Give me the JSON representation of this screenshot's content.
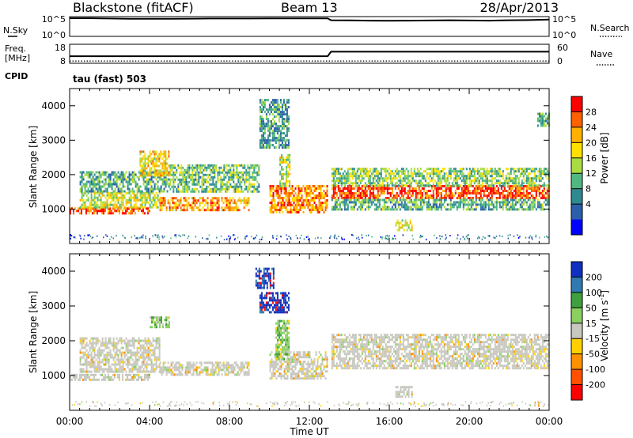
{
  "header": {
    "station": "Blackstone (fitACF)",
    "beam": "Beam 13",
    "date": "28/Apr/2013",
    "cpid_label": "CPID",
    "cpid_value": "tau (fast) 503"
  },
  "chart_data": [
    {
      "type": "line",
      "title": "",
      "xlabel": "",
      "series": [
        {
          "name": "N.Sky",
          "axis": "left",
          "style": "solid",
          "color": "#000000",
          "x": [
            "00:00",
            "01:00",
            "02:00",
            "03:00",
            "04:00",
            "05:00",
            "06:00",
            "07:00",
            "08:00",
            "09:00",
            "10:00",
            "11:00",
            "12:00",
            "12:55",
            "13:05",
            "14:00",
            "15:00",
            "16:00",
            "17:00",
            "18:00",
            "19:00",
            "20:00",
            "21:00",
            "22:00",
            "23:00",
            "24:00"
          ],
          "values": [
            5.0,
            5.0,
            4.92,
            4.85,
            4.82,
            4.85,
            4.87,
            4.9,
            4.9,
            4.92,
            4.95,
            4.95,
            4.95,
            4.95,
            4.4,
            4.38,
            4.3,
            4.25,
            4.3,
            4.35,
            4.4,
            4.35,
            4.3,
            4.4,
            4.45,
            4.6
          ]
        },
        {
          "name": "N.Search",
          "axis": "right",
          "style": "dotted",
          "color": "#000000"
        }
      ],
      "left_axis": {
        "labels": [
          "10^5",
          "10^0"
        ],
        "label": "N.Sky"
      },
      "right_axis": {
        "labels": [
          "10^5",
          "10^0"
        ],
        "label": "N.Search"
      }
    },
    {
      "type": "line",
      "title": "",
      "series": [
        {
          "name": "Freq. [MHz]",
          "axis": "left",
          "style": "solid",
          "color": "#000000",
          "x": [
            "00:00",
            "12:55",
            "13:05",
            "24:00"
          ],
          "values": [
            11.6,
            11.6,
            14.2,
            14.2
          ]
        },
        {
          "name": "Nave",
          "axis": "right",
          "style": "dotted",
          "color": "#000000",
          "x": [
            "00:00",
            "24:00"
          ],
          "values": [
            5,
            5
          ]
        }
      ],
      "left_axis": {
        "labels": [
          "18",
          "8"
        ],
        "label_top": "Freq.",
        "label_bottom": "[MHz]"
      },
      "right_axis": {
        "labels": [
          "60",
          "0"
        ],
        "label": "Nave"
      }
    },
    {
      "type": "heatmap",
      "title": "",
      "ylabel": "Slant Range [km]",
      "ylim": [
        0,
        4500
      ],
      "yticks": [
        "1000",
        "2000",
        "3000",
        "4000"
      ],
      "colorbar": {
        "label": "Power [dB]",
        "ticks": [
          "28",
          "24",
          "20",
          "16",
          "12",
          "8",
          "4"
        ],
        "colors": [
          "#ff0000",
          "#ff6000",
          "#ffb000",
          "#ffe000",
          "#a8dc40",
          "#4fb880",
          "#2f8a90",
          "#2c5faa",
          "#0000ff"
        ]
      },
      "scatter_bands": [
        {
          "t_start": 0.0,
          "t_end": 4.0,
          "r_start": 850,
          "r_end": 1050,
          "level": 0.9
        },
        {
          "t_start": 0.5,
          "t_end": 4.5,
          "r_start": 1050,
          "r_end": 1500,
          "level": 0.55
        },
        {
          "t_start": 0.5,
          "t_end": 5.0,
          "r_start": 1500,
          "r_end": 2100,
          "level": 0.35
        },
        {
          "t_start": 3.5,
          "t_end": 5.0,
          "r_start": 2000,
          "r_end": 2700,
          "level": 0.65
        },
        {
          "t_start": 4.5,
          "t_end": 9.0,
          "r_start": 1000,
          "r_end": 1350,
          "level": 0.75
        },
        {
          "t_start": 5.0,
          "t_end": 9.5,
          "r_start": 1500,
          "r_end": 2300,
          "level": 0.4
        },
        {
          "t_start": 9.5,
          "t_end": 11.0,
          "r_start": 2800,
          "r_end": 4200,
          "level": 0.3
        },
        {
          "t_start": 10.0,
          "t_end": 12.9,
          "r_start": 900,
          "r_end": 1700,
          "level": 0.8
        },
        {
          "t_start": 10.5,
          "t_end": 11.0,
          "r_start": 1700,
          "r_end": 2600,
          "level": 0.55
        },
        {
          "t_start": 13.1,
          "t_end": 24.0,
          "r_start": 1300,
          "r_end": 1700,
          "level": 0.95
        },
        {
          "t_start": 13.1,
          "t_end": 24.0,
          "r_start": 1700,
          "r_end": 2200,
          "level": 0.45
        },
        {
          "t_start": 13.1,
          "t_end": 24.0,
          "r_start": 1000,
          "r_end": 1300,
          "level": 0.35
        },
        {
          "t_start": 16.3,
          "t_end": 17.1,
          "r_start": 400,
          "r_end": 700,
          "level": 0.6
        },
        {
          "t_start": 23.4,
          "t_end": 24.0,
          "r_start": 3400,
          "r_end": 3800,
          "level": 0.35
        }
      ]
    },
    {
      "type": "heatmap",
      "title": "",
      "ylabel": "Slant Range [km]",
      "xlabel": "Time UT",
      "xticks": [
        "00:00",
        "04:00",
        "08:00",
        "12:00",
        "16:00",
        "20:00",
        "00:00"
      ],
      "ylim": [
        0,
        4500
      ],
      "yticks": [
        "1000",
        "2000",
        "3000",
        "4000"
      ],
      "colorbar": {
        "label": "Velocity [m s^-1]",
        "label_main": "Velocity [m s",
        "label_exp": "-1",
        "label_close": "]",
        "ticks": [
          "200",
          "100",
          "50",
          "15",
          "-15",
          "-50",
          "-100",
          "-200"
        ],
        "colors": [
          "#1030c0",
          "#2f7ab0",
          "#3fa040",
          "#8ad060",
          "#c8c8c0",
          "#ffd000",
          "#ff9000",
          "#ff5000",
          "#ff0000"
        ]
      },
      "scatter_bands": [
        {
          "t_start": 0.0,
          "t_end": 4.0,
          "r_start": 850,
          "r_end": 1050,
          "kind": "ground"
        },
        {
          "t_start": 0.5,
          "t_end": 4.5,
          "r_start": 1100,
          "r_end": 2100,
          "kind": "ground"
        },
        {
          "t_start": 4.0,
          "t_end": 5.0,
          "r_start": 2400,
          "r_end": 2700,
          "kind": "positive"
        },
        {
          "t_start": 4.5,
          "t_end": 9.0,
          "r_start": 1000,
          "r_end": 1400,
          "kind": "ground"
        },
        {
          "t_start": 9.3,
          "t_end": 10.2,
          "r_start": 3500,
          "r_end": 4100,
          "kind": "strong_positive"
        },
        {
          "t_start": 9.5,
          "t_end": 11.0,
          "r_start": 2800,
          "r_end": 3400,
          "kind": "strong_positive"
        },
        {
          "t_start": 10.0,
          "t_end": 12.9,
          "r_start": 900,
          "r_end": 1700,
          "kind": "ground"
        },
        {
          "t_start": 10.3,
          "t_end": 11.0,
          "r_start": 1500,
          "r_end": 2600,
          "kind": "positive"
        },
        {
          "t_start": 13.1,
          "t_end": 24.0,
          "r_start": 1200,
          "r_end": 2200,
          "kind": "ground"
        },
        {
          "t_start": 16.3,
          "t_end": 17.1,
          "r_start": 400,
          "r_end": 700,
          "kind": "ground"
        }
      ]
    }
  ],
  "colors": {
    "axes": "#000000",
    "background": "#ffffff",
    "ground_scatter": "#c8c8c0"
  }
}
